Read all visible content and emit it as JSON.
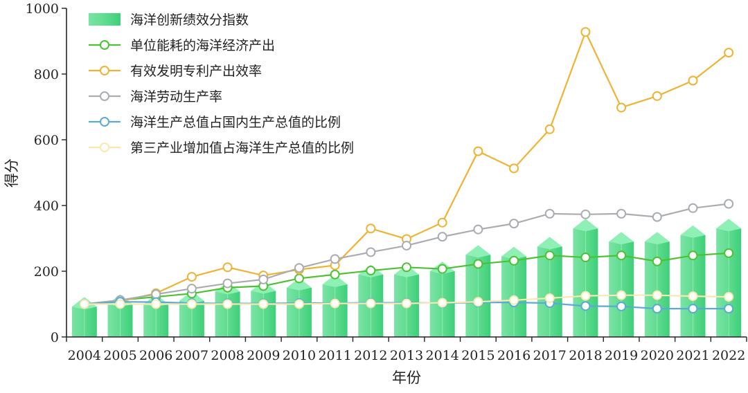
{
  "chart_data": {
    "type": "bar",
    "title": "",
    "xlabel": "年份",
    "ylabel": "得分",
    "ylim": [
      0,
      1000
    ],
    "yticks": [
      0,
      200,
      400,
      600,
      800,
      1000
    ],
    "categories": [
      "2004",
      "2005",
      "2006",
      "2007",
      "2008",
      "2009",
      "2010",
      "2011",
      "2012",
      "2013",
      "2014",
      "2015",
      "2016",
      "2017",
      "2018",
      "2019",
      "2020",
      "2021",
      "2022"
    ],
    "legend_position": "top-left",
    "bar_series": {
      "name": "海洋创新绩效分指数",
      "color": "#5fdc8f",
      "values": [
        92,
        100,
        100,
        110,
        138,
        140,
        150,
        160,
        190,
        190,
        200,
        250,
        245,
        275,
        330,
        290,
        290,
        310,
        330
      ]
    },
    "series": [
      {
        "name": "单位能耗的海洋经济产出",
        "color": "#4cc232",
        "values": [
          100,
          112,
          122,
          132,
          150,
          155,
          178,
          190,
          202,
          212,
          207,
          222,
          232,
          248,
          242,
          248,
          230,
          248,
          255
        ]
      },
      {
        "name": "有效发明专利产出效率",
        "color": "#f0b233",
        "values": [
          100,
          108,
          133,
          183,
          212,
          187,
          205,
          218,
          330,
          298,
          348,
          565,
          513,
          632,
          928,
          698,
          733,
          780,
          865
        ]
      },
      {
        "name": "海洋劳动生产率",
        "color": "#a9acb0",
        "values": [
          100,
          112,
          130,
          147,
          163,
          175,
          210,
          237,
          258,
          278,
          305,
          327,
          345,
          375,
          373,
          375,
          365,
          392,
          405
        ]
      },
      {
        "name": "海洋生产总值占国内生产总值的比例",
        "color": "#5aaad8",
        "values": [
          100,
          107,
          106,
          103,
          102,
          102,
          103,
          103,
          104,
          104,
          103,
          105,
          105,
          103,
          94,
          93,
          86,
          86,
          86
        ]
      },
      {
        "name": "第三产业增加值占海洋生产总值的比例",
        "color": "#f7e9b0",
        "values": [
          100,
          100,
          100,
          100,
          100,
          100,
          100,
          102,
          102,
          102,
          104,
          107,
          112,
          118,
          125,
          127,
          127,
          124,
          122
        ]
      }
    ]
  }
}
